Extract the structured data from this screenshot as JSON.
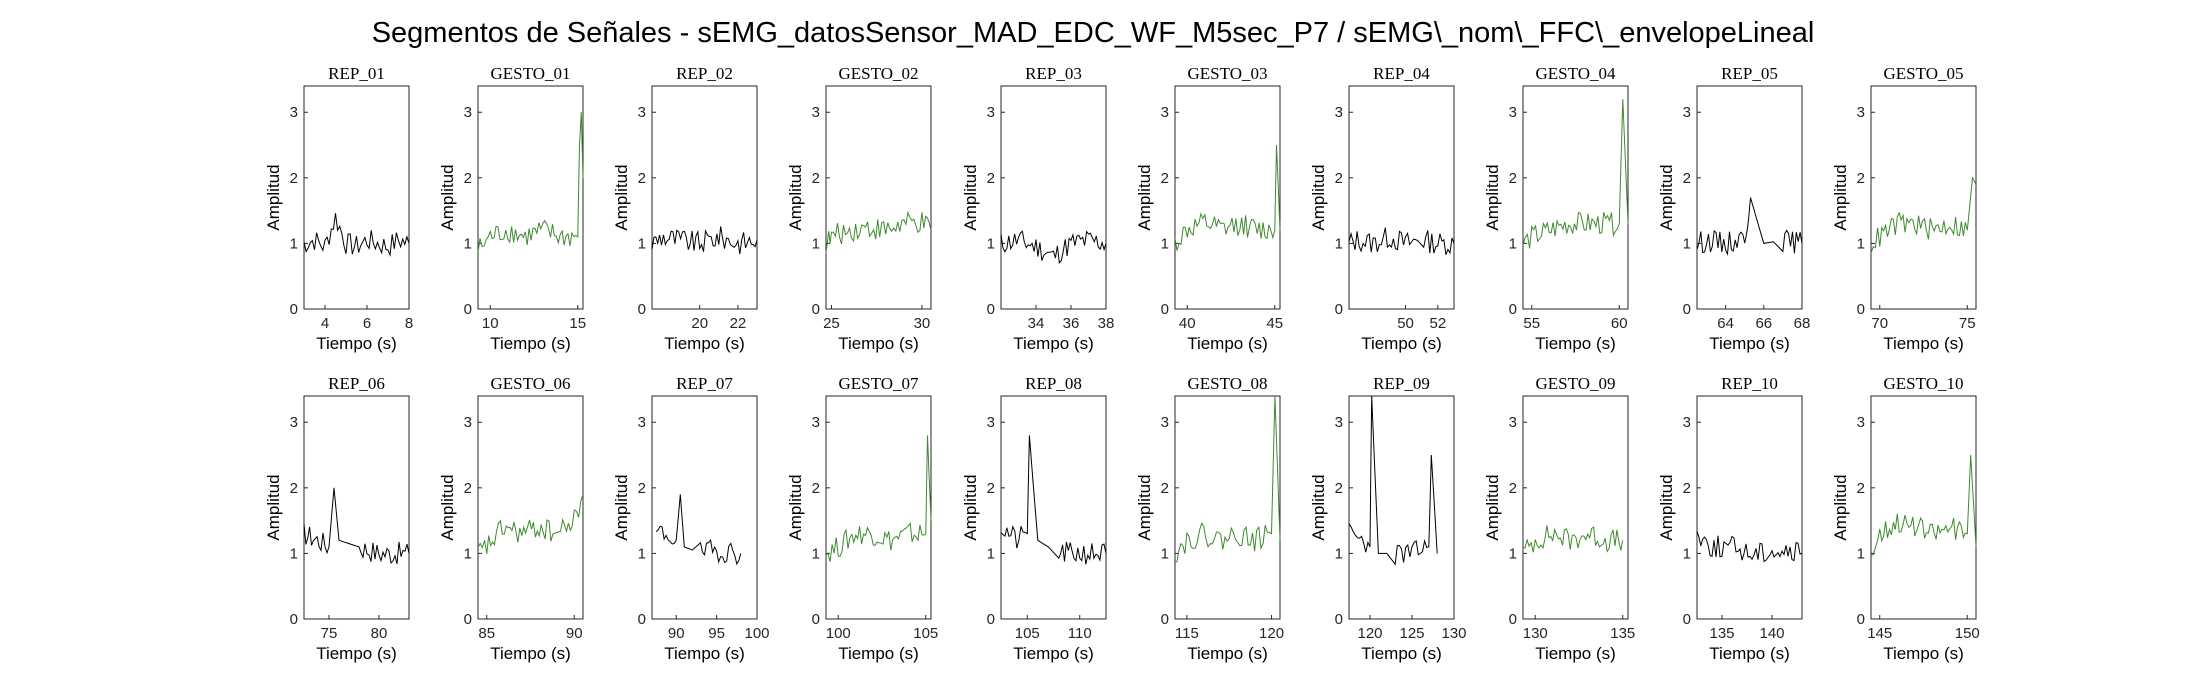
{
  "suptitle": "Segmentos de Señales - sEMG_datosSensor_MAD_EDC_WF_M5sec_P7 / sEMG\\_nom\\_FFC\\_envelopeLineal",
  "colors": {
    "rep": "#000000",
    "gesto": "#3e8a2e",
    "axis": "#262626"
  },
  "chart_data": [
    {
      "type": "line",
      "title": "REP_01",
      "color": "#000000",
      "xlabel": "Tiempo (s)",
      "ylabel": "Amplitud",
      "xlim": [
        3,
        8
      ],
      "ylim": [
        0,
        3.4
      ],
      "xticks": [
        4,
        6,
        8
      ],
      "yticks": [
        0,
        1,
        2,
        3
      ],
      "series": [
        {
          "x": [
            3,
            3.5,
            4,
            4.5,
            5,
            5.5,
            6,
            6.5,
            7,
            7.5,
            8
          ],
          "y": [
            1.0,
            1.05,
            0.95,
            1.4,
            1.0,
            0.95,
            1.05,
            1.0,
            0.95,
            1.05,
            1.0
          ]
        }
      ]
    },
    {
      "type": "line",
      "title": "GESTO_01",
      "color": "#3e8a2e",
      "xlabel": "Tiempo (s)",
      "ylabel": "Amplitud",
      "xlim": [
        9.3,
        15.3
      ],
      "ylim": [
        0,
        3.4
      ],
      "xticks": [
        10,
        15
      ],
      "yticks": [
        0,
        1,
        2,
        3
      ],
      "series": [
        {
          "x": [
            9.3,
            10,
            11,
            12,
            13,
            14,
            15,
            15.1,
            15.2,
            15.3
          ],
          "y": [
            0.9,
            1.1,
            1.2,
            1.1,
            1.2,
            1.1,
            1.1,
            2.5,
            3.0,
            2.0
          ]
        }
      ]
    },
    {
      "type": "line",
      "title": "REP_02",
      "color": "#000000",
      "xlabel": "Tiempo (s)",
      "ylabel": "Amplitud",
      "xlim": [
        17.5,
        23
      ],
      "ylim": [
        0,
        3.4
      ],
      "xticks": [
        20,
        22
      ],
      "yticks": [
        0,
        1,
        2,
        3
      ],
      "series": [
        {
          "x": [
            17.5,
            18,
            19,
            20,
            21,
            22,
            23
          ],
          "y": [
            1.0,
            1.1,
            1.05,
            1.0,
            1.1,
            1.0,
            1.05
          ]
        }
      ]
    },
    {
      "type": "line",
      "title": "GESTO_02",
      "color": "#3e8a2e",
      "xlabel": "Tiempo (s)",
      "ylabel": "Amplitud",
      "xlim": [
        24.7,
        30.5
      ],
      "ylim": [
        0,
        3.4
      ],
      "xticks": [
        25,
        30
      ],
      "yticks": [
        0,
        1,
        2,
        3
      ],
      "series": [
        {
          "x": [
            24.7,
            25,
            26,
            27,
            28,
            29,
            30,
            30.5
          ],
          "y": [
            1.0,
            1.1,
            1.2,
            1.25,
            1.2,
            1.3,
            1.3,
            1.2
          ]
        }
      ]
    },
    {
      "type": "line",
      "title": "REP_03",
      "color": "#000000",
      "xlabel": "Tiempo (s)",
      "ylabel": "Amplitud",
      "xlim": [
        32,
        38
      ],
      "ylim": [
        0,
        3.4
      ],
      "xticks": [
        34,
        36,
        38
      ],
      "yticks": [
        0,
        1,
        2,
        3
      ],
      "series": [
        {
          "x": [
            32,
            33,
            34,
            35,
            36,
            37,
            38
          ],
          "y": [
            1.0,
            1.05,
            0.95,
            0.8,
            1.0,
            1.05,
            1.0
          ]
        }
      ]
    },
    {
      "type": "line",
      "title": "GESTO_03",
      "color": "#3e8a2e",
      "xlabel": "Tiempo (s)",
      "ylabel": "Amplitud",
      "xlim": [
        39.3,
        45.3
      ],
      "ylim": [
        0,
        3.4
      ],
      "xticks": [
        40,
        45
      ],
      "yticks": [
        0,
        1,
        2,
        3
      ],
      "series": [
        {
          "x": [
            39.3,
            40,
            41,
            42,
            43,
            44,
            45,
            45.1,
            45.3
          ],
          "y": [
            1.0,
            1.2,
            1.3,
            1.2,
            1.3,
            1.2,
            1.2,
            2.5,
            1.2
          ]
        }
      ]
    },
    {
      "type": "line",
      "title": "REP_04",
      "color": "#000000",
      "xlabel": "Tiempo (s)",
      "ylabel": "Amplitud",
      "xlim": [
        46.5,
        53
      ],
      "ylim": [
        0,
        3.4
      ],
      "xticks": [
        50,
        52
      ],
      "yticks": [
        0,
        1,
        2,
        3
      ],
      "series": [
        {
          "x": [
            46.5,
            47,
            48,
            49,
            50,
            51,
            52,
            53
          ],
          "y": [
            1.0,
            1.05,
            1.0,
            1.1,
            1.0,
            1.05,
            1.0,
            1.0
          ]
        }
      ]
    },
    {
      "type": "line",
      "title": "GESTO_04",
      "color": "#3e8a2e",
      "xlabel": "Tiempo (s)",
      "ylabel": "Amplitud",
      "xlim": [
        54.5,
        60.5
      ],
      "ylim": [
        0,
        3.4
      ],
      "xticks": [
        55,
        60
      ],
      "yticks": [
        0,
        1,
        2,
        3
      ],
      "series": [
        {
          "x": [
            54.5,
            55,
            56,
            57,
            58,
            59,
            60,
            60.2,
            60.5
          ],
          "y": [
            1.0,
            1.1,
            1.2,
            1.3,
            1.3,
            1.3,
            1.3,
            3.2,
            1.3
          ]
        }
      ]
    },
    {
      "type": "line",
      "title": "REP_05",
      "color": "#000000",
      "xlabel": "Tiempo (s)",
      "ylabel": "Amplitud",
      "xlim": [
        62.5,
        68
      ],
      "ylim": [
        0,
        3.4
      ],
      "xticks": [
        64,
        66,
        68
      ],
      "yticks": [
        0,
        1,
        2,
        3
      ],
      "series": [
        {
          "x": [
            62.5,
            63,
            64,
            65,
            65.3,
            66,
            67,
            68
          ],
          "y": [
            1.0,
            1.05,
            1.0,
            1.1,
            1.7,
            1.0,
            1.05,
            1.0
          ]
        }
      ]
    },
    {
      "type": "line",
      "title": "GESTO_05",
      "color": "#3e8a2e",
      "xlabel": "Tiempo (s)",
      "ylabel": "Amplitud",
      "xlim": [
        69.5,
        75.5
      ],
      "ylim": [
        0,
        3.4
      ],
      "xticks": [
        70,
        75
      ],
      "yticks": [
        0,
        1,
        2,
        3
      ],
      "series": [
        {
          "x": [
            69.5,
            70,
            71,
            72,
            73,
            74,
            75,
            75.3,
            75.5
          ],
          "y": [
            1.0,
            1.1,
            1.3,
            1.3,
            1.2,
            1.3,
            1.2,
            2.0,
            1.9
          ]
        }
      ]
    },
    {
      "type": "line",
      "title": "REP_06",
      "color": "#000000",
      "xlabel": "Tiempo (s)",
      "ylabel": "Amplitud",
      "xlim": [
        72.5,
        83
      ],
      "ylim": [
        0,
        3.4
      ],
      "xticks": [
        75,
        80
      ],
      "yticks": [
        0,
        1,
        2,
        3
      ],
      "series": [
        {
          "x": [
            72.5,
            74,
            75,
            75.5,
            76,
            78,
            80,
            83
          ],
          "y": [
            1.3,
            1.2,
            1.1,
            2.0,
            1.2,
            1.1,
            1.0,
            1.0
          ]
        }
      ]
    },
    {
      "type": "line",
      "title": "GESTO_06",
      "color": "#3e8a2e",
      "xlabel": "Tiempo (s)",
      "ylabel": "Amplitud",
      "xlim": [
        84.5,
        90.5
      ],
      "ylim": [
        0,
        3.4
      ],
      "xticks": [
        85,
        90
      ],
      "yticks": [
        0,
        1,
        2,
        3
      ],
      "series": [
        {
          "x": [
            84.5,
            85,
            86,
            87,
            88,
            89,
            90,
            90.5
          ],
          "y": [
            1.0,
            1.1,
            1.4,
            1.3,
            1.4,
            1.3,
            1.5,
            1.9
          ]
        }
      ]
    },
    {
      "type": "line",
      "title": "REP_07",
      "color": "#000000",
      "xlabel": "Tiempo (s)",
      "ylabel": "Amplitud",
      "xlim": [
        87,
        100
      ],
      "ylim": [
        0,
        3.4
      ],
      "xticks": [
        90,
        95,
        100
      ],
      "yticks": [
        0,
        1,
        2,
        3
      ],
      "series": [
        {
          "x": [
            87.5,
            89,
            90,
            90.5,
            91,
            93,
            95,
            98
          ],
          "y": [
            1.3,
            1.3,
            1.2,
            1.9,
            1.1,
            1.0,
            1.05,
            1.0
          ]
        }
      ]
    },
    {
      "type": "line",
      "title": "GESTO_07",
      "color": "#3e8a2e",
      "xlabel": "Tiempo (s)",
      "ylabel": "Amplitud",
      "xlim": [
        99.3,
        105.3
      ],
      "ylim": [
        0,
        3.4
      ],
      "xticks": [
        100,
        105
      ],
      "yticks": [
        0,
        1,
        2,
        3
      ],
      "series": [
        {
          "x": [
            99.3,
            100,
            101,
            102,
            103,
            104,
            105,
            105.1,
            105.3
          ],
          "y": [
            1.0,
            1.1,
            1.3,
            1.3,
            1.2,
            1.3,
            1.3,
            2.8,
            1.5
          ]
        }
      ]
    },
    {
      "type": "line",
      "title": "REP_08",
      "color": "#000000",
      "xlabel": "Tiempo (s)",
      "ylabel": "Amplitud",
      "xlim": [
        102.5,
        112.5
      ],
      "ylim": [
        0,
        3.4
      ],
      "xticks": [
        105,
        110
      ],
      "yticks": [
        0,
        1,
        2,
        3
      ],
      "series": [
        {
          "x": [
            102.5,
            104,
            105,
            105.2,
            106,
            108,
            110,
            112.5
          ],
          "y": [
            1.4,
            1.2,
            1.3,
            2.8,
            1.2,
            1.0,
            1.0,
            1.0
          ]
        }
      ]
    },
    {
      "type": "line",
      "title": "GESTO_08",
      "color": "#3e8a2e",
      "xlabel": "Tiempo (s)",
      "ylabel": "Amplitud",
      "xlim": [
        114.3,
        120.5
      ],
      "ylim": [
        0,
        3.4
      ],
      "xticks": [
        115,
        120
      ],
      "yticks": [
        0,
        1,
        2,
        3
      ],
      "series": [
        {
          "x": [
            114.3,
            115,
            116,
            117,
            118,
            119,
            120,
            120.2,
            120.5
          ],
          "y": [
            1.0,
            1.2,
            1.3,
            1.2,
            1.3,
            1.2,
            1.3,
            3.4,
            1.2
          ]
        }
      ]
    },
    {
      "type": "line",
      "title": "REP_09",
      "color": "#000000",
      "xlabel": "Tiempo (s)",
      "ylabel": "Amplitud",
      "xlim": [
        117.5,
        130
      ],
      "ylim": [
        0,
        3.4
      ],
      "xticks": [
        120,
        125,
        130
      ],
      "yticks": [
        0,
        1,
        2,
        3
      ],
      "series": [
        {
          "x": [
            117.5,
            119,
            120,
            120.2,
            121,
            123,
            125,
            127,
            127.3,
            128
          ],
          "y": [
            1.3,
            1.2,
            1.1,
            3.4,
            1.0,
            1.0,
            1.0,
            1.1,
            2.5,
            1.0
          ]
        }
      ]
    },
    {
      "type": "line",
      "title": "GESTO_09",
      "color": "#3e8a2e",
      "xlabel": "Tiempo (s)",
      "ylabel": "Amplitud",
      "xlim": [
        129.3,
        135.3
      ],
      "ylim": [
        0,
        3.4
      ],
      "xticks": [
        130,
        135
      ],
      "yticks": [
        0,
        1,
        2,
        3
      ],
      "series": [
        {
          "x": [
            129.3,
            130,
            131,
            132,
            133,
            134,
            135
          ],
          "y": [
            1.0,
            1.2,
            1.3,
            1.2,
            1.3,
            1.2,
            1.2
          ]
        }
      ]
    },
    {
      "type": "line",
      "title": "REP_10",
      "color": "#000000",
      "xlabel": "Tiempo (s)",
      "ylabel": "Amplitud",
      "xlim": [
        132.5,
        143
      ],
      "ylim": [
        0,
        3.4
      ],
      "xticks": [
        135,
        140
      ],
      "yticks": [
        0,
        1,
        2,
        3
      ],
      "series": [
        {
          "x": [
            132.5,
            134,
            136,
            138,
            140,
            142,
            143
          ],
          "y": [
            1.3,
            1.1,
            1.1,
            1.0,
            1.05,
            1.0,
            1.0
          ]
        }
      ]
    },
    {
      "type": "line",
      "title": "GESTO_10",
      "color": "#3e8a2e",
      "xlabel": "Tiempo (s)",
      "ylabel": "Amplitud",
      "xlim": [
        144.5,
        150.5
      ],
      "ylim": [
        0,
        3.4
      ],
      "xticks": [
        145,
        150
      ],
      "yticks": [
        0,
        1,
        2,
        3
      ],
      "series": [
        {
          "x": [
            144.5,
            145,
            146,
            147,
            148,
            149,
            150,
            150.2,
            150.5
          ],
          "y": [
            1.0,
            1.3,
            1.5,
            1.4,
            1.3,
            1.4,
            1.3,
            2.5,
            1.1
          ]
        }
      ]
    }
  ]
}
